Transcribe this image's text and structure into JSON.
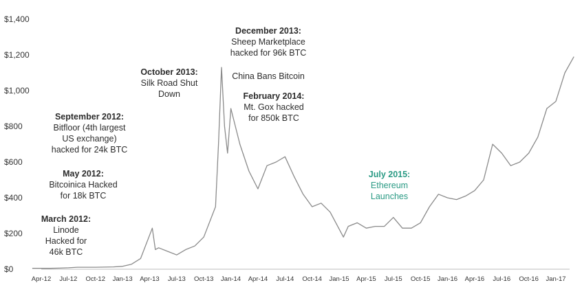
{
  "chart_data": {
    "type": "line",
    "title": "",
    "xlabel": "",
    "ylabel": "",
    "ylim": [
      0,
      1400
    ],
    "y_ticks": [
      "$0",
      "$200",
      "$400",
      "$600",
      "$800",
      "$1,000",
      "$1,200",
      "$1,400"
    ],
    "y_tick_values": [
      0,
      200,
      400,
      600,
      800,
      1000,
      1200,
      1400
    ],
    "x_ticks": [
      "Apr-12",
      "Jul-12",
      "Oct-12",
      "Jan-13",
      "Apr-13",
      "Jul-13",
      "Oct-13",
      "Jan-14",
      "Apr-14",
      "Jul-14",
      "Oct-14",
      "Jan-15",
      "Apr-15",
      "Jul-15",
      "Oct-15",
      "Jan-16",
      "Apr-16",
      "Jul-16",
      "Oct-16",
      "Jan-17"
    ],
    "line_color": "#8a8a8a",
    "grid": false,
    "series": [
      {
        "x": [
          "2012-03",
          "2012-04",
          "2012-05",
          "2012-06",
          "2012-07",
          "2012-08",
          "2012-09",
          "2012-10",
          "2012-11",
          "2012-12",
          "2013-01",
          "2013-02",
          "2013-03",
          "2013-04-10",
          "2013-04-20",
          "2013-05",
          "2013-06",
          "2013-07",
          "2013-08",
          "2013-09",
          "2013-10",
          "2013-11-10",
          "2013-11-20",
          "2013-11-30",
          "2013-12-10",
          "2013-12-20",
          "2014-01",
          "2014-02",
          "2014-03",
          "2014-04",
          "2014-05",
          "2014-06",
          "2014-07",
          "2014-08",
          "2014-09",
          "2014-10",
          "2014-11",
          "2014-12",
          "2015-01-15",
          "2015-02",
          "2015-03",
          "2015-04",
          "2015-05",
          "2015-06",
          "2015-07",
          "2015-08",
          "2015-09",
          "2015-10",
          "2015-11",
          "2015-12",
          "2016-01",
          "2016-02",
          "2016-03",
          "2016-04",
          "2016-05",
          "2016-06",
          "2016-07",
          "2016-08",
          "2016-09",
          "2016-10",
          "2016-11",
          "2016-12",
          "2017-01",
          "2017-02",
          "2017-03"
        ],
        "y": [
          5,
          5,
          5,
          6,
          8,
          11,
          11,
          11,
          12,
          13,
          16,
          28,
          60,
          230,
          110,
          120,
          100,
          80,
          110,
          130,
          180,
          350,
          700,
          1130,
          800,
          650,
          900,
          700,
          550,
          450,
          580,
          600,
          630,
          520,
          420,
          350,
          370,
          320,
          180,
          240,
          260,
          230,
          240,
          240,
          290,
          230,
          230,
          260,
          350,
          420,
          400,
          390,
          410,
          440,
          500,
          700,
          650,
          580,
          600,
          650,
          740,
          900,
          940,
          1100,
          1190
        ]
      }
    ],
    "annotations": [
      {
        "heading": "March 2012:",
        "text": [
          "Linode",
          "Hacked for",
          "46k BTC"
        ]
      },
      {
        "heading": "May 2012:",
        "text": [
          "Bitcoinica Hacked",
          "for 18k BTC"
        ]
      },
      {
        "heading": "September 2012:",
        "text": [
          "Bitfloor (4th largest",
          "US exchange)",
          "hacked for 24k BTC"
        ]
      },
      {
        "heading": "October 2013:",
        "text": [
          "Silk Road Shut",
          "Down"
        ]
      },
      {
        "heading": "December 2013:",
        "text": [
          "Sheep Marketplace",
          "hacked for 96k BTC"
        ]
      },
      {
        "heading": "",
        "text": [
          "China Bans Bitcoin"
        ]
      },
      {
        "heading": "February 2014:",
        "text": [
          "Mt. Gox hacked",
          "for 850k BTC"
        ]
      },
      {
        "heading": "July 2015:",
        "text": [
          "Ethereum",
          "Launches"
        ]
      }
    ]
  }
}
